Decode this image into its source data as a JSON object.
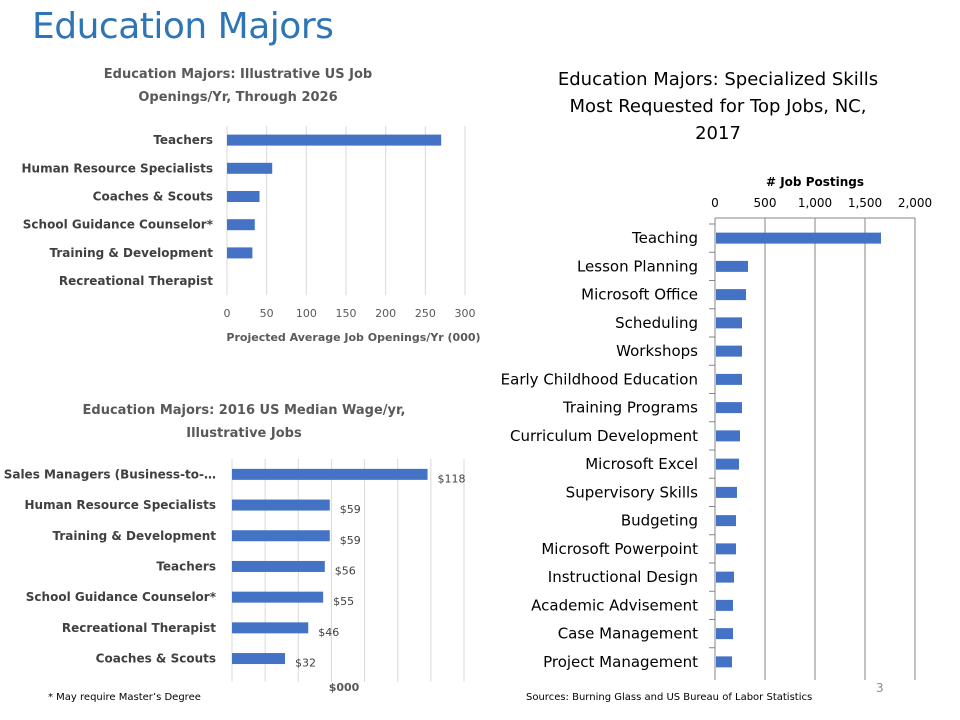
{
  "page": {
    "title": "Education Majors",
    "footnote": "* May require Master’s Degree",
    "sources": "Sources: Burning Glass and US Bureau of Labor Statistics",
    "slide_number": "3"
  },
  "colors": {
    "bar": "#4472c4",
    "title": "#2e75b6"
  },
  "chart_data": [
    {
      "id": "openings",
      "type": "bar",
      "orientation": "horizontal",
      "title": "Education Majors: Illustrative US Job Openings/Yr, Through 2026",
      "title_lines": [
        "Education Majors: Illustrative US Job",
        "Openings/Yr, Through 2026"
      ],
      "categories": [
        "Teachers",
        "Human Resource Specialists",
        "Coaches & Scouts",
        "School Guidance Counselor*",
        "Training & Development",
        "Recreational Therapist"
      ],
      "values": [
        270,
        57,
        41,
        35,
        32,
        0
      ],
      "xlim": [
        0,
        300
      ],
      "ticks": [
        0,
        50,
        100,
        150,
        200,
        250,
        300
      ],
      "tick_labels": [
        "0",
        "50",
        "100",
        "150",
        "200",
        "250",
        "300"
      ],
      "xlabel": "Projected Average Job Openings/Yr (000)",
      "grid": true
    },
    {
      "id": "wages",
      "type": "bar",
      "orientation": "horizontal",
      "title": "Education Majors: 2016 US Median Wage/yr, Illustrative Jobs",
      "title_lines": [
        "Education Majors: 2016 US Median Wage/yr,",
        "Illustrative Jobs"
      ],
      "categories": [
        "Sales Managers (Business-to-…",
        "Human Resource Specialists",
        "Training & Development",
        "Teachers",
        "School Guidance Counselor*",
        "Recreational Therapist",
        "Coaches & Scouts"
      ],
      "values": [
        118,
        59,
        59,
        56,
        55,
        46,
        32
      ],
      "data_labels": [
        "$118",
        "$59",
        "$59",
        "$56",
        "$55",
        "$46",
        "$32"
      ],
      "xlim": [
        0,
        140
      ],
      "xlabel": "$000",
      "grid": true
    },
    {
      "id": "skills",
      "type": "bar",
      "orientation": "horizontal",
      "title": "Education Majors: Specialized Skills Most Requested for Top Jobs, NC, 2017",
      "title_lines": [
        "Education Majors: Specialized Skills",
        "Most Requested for Top Jobs, NC,",
        "2017"
      ],
      "categories": [
        "Teaching",
        "Lesson Planning",
        "Microsoft Office",
        "Scheduling",
        "Workshops",
        "Early Childhood Education",
        "Training Programs",
        "Curriculum Development",
        "Microsoft Excel",
        "Supervisory Skills",
        "Budgeting",
        "Microsoft Powerpoint",
        "Instructional Design",
        "Academic Advisement",
        "Case Management",
        "Project Management"
      ],
      "values": [
        1650,
        320,
        300,
        260,
        260,
        260,
        260,
        240,
        230,
        210,
        200,
        200,
        180,
        170,
        170,
        160
      ],
      "xlim": [
        0,
        2000
      ],
      "ticks": [
        0,
        500,
        1000,
        1500,
        2000
      ],
      "tick_labels": [
        "0",
        "500",
        "1,000",
        "1,500",
        "2,000"
      ],
      "xlabel": "# Job Postings",
      "axis_position": "top",
      "grid": true
    }
  ]
}
